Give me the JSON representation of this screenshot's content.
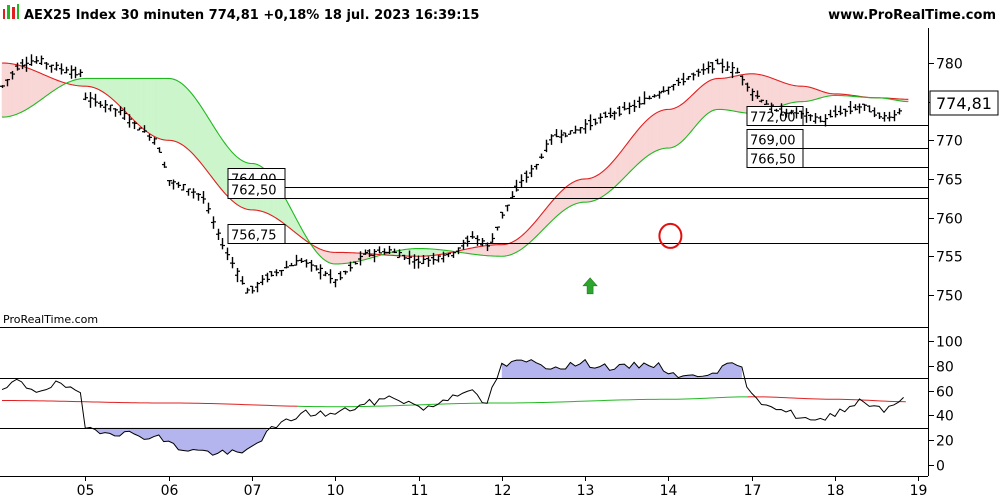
{
  "header": {
    "title": "AEX25 Index 30 minuten 774,81 +0,18% 18 jul. 2023 16:39:15",
    "site": "www.ProRealTime.com"
  },
  "watermark": "ProRealTime.com",
  "last_price_label": "774,81",
  "icons": {
    "logo": "candlestick-logo-icon",
    "signal": "green-up-arrow-icon",
    "marker": "red-circle-marker-icon"
  },
  "colors": {
    "candle": "#000000",
    "upper_band": "#e02020",
    "lower_band": "#22b822",
    "cloud_up": "#ccf5cc",
    "cloud_down": "#f9d7d7",
    "osc_line": "#000000",
    "osc_fill": "#b4b4ee",
    "signal_arrow": "#2ea52e",
    "marker": "#e01010",
    "axis": "#000000"
  },
  "chart_data": [
    {
      "type": "candlestick",
      "title": "AEX25 Index 30 minuten",
      "x_tick_labels": [
        "05",
        "06",
        "07",
        "10",
        "11",
        "12",
        "13",
        "14",
        "17",
        "18",
        "19"
      ],
      "y_ticks": [
        750,
        755,
        760,
        765,
        770,
        775,
        780
      ],
      "y_tick_labels": [
        "750",
        "755",
        "760",
        "765",
        "770",
        "775",
        "780"
      ],
      "ylim": [
        747.5,
        784
      ],
      "grid": false,
      "last_price": 774.81,
      "horizontal_levels": [
        {
          "value": 764.0,
          "label": "764,00"
        },
        {
          "value": 762.5,
          "label": "762,50"
        },
        {
          "value": 756.75,
          "label": "756,75"
        },
        {
          "value": 772.0,
          "label": "772,00"
        },
        {
          "value": 769.0,
          "label": "769,00"
        },
        {
          "value": 766.5,
          "label": "766,50"
        }
      ],
      "price_anchors": [
        {
          "day": 4.0,
          "v": 777.0
        },
        {
          "day": 4.2,
          "v": 779.8
        },
        {
          "day": 4.45,
          "v": 780.3
        },
        {
          "day": 4.7,
          "v": 779.2
        },
        {
          "day": 4.95,
          "v": 778.6
        },
        {
          "day": 5.0,
          "v": 775.5
        },
        {
          "day": 5.4,
          "v": 773.8
        },
        {
          "day": 5.85,
          "v": 769.8
        },
        {
          "day": 6.0,
          "v": 764.8
        },
        {
          "day": 6.4,
          "v": 762.8
        },
        {
          "day": 6.6,
          "v": 757.5
        },
        {
          "day": 6.95,
          "v": 750.3
        },
        {
          "day": 7.2,
          "v": 752.5
        },
        {
          "day": 7.6,
          "v": 754.5
        },
        {
          "day": 7.85,
          "v": 753.0
        },
        {
          "day": 8.0,
          "v": 751.8
        },
        {
          "day": 8.35,
          "v": 755.3
        },
        {
          "day": 8.65,
          "v": 755.7
        },
        {
          "day": 9.0,
          "v": 754.3
        },
        {
          "day": 9.4,
          "v": 755.3
        },
        {
          "day": 9.65,
          "v": 757.6
        },
        {
          "day": 9.85,
          "v": 756.2
        },
        {
          "day": 10.0,
          "v": 760.5
        },
        {
          "day": 10.25,
          "v": 765.0
        },
        {
          "day": 10.4,
          "v": 766.5
        },
        {
          "day": 10.6,
          "v": 770.5
        },
        {
          "day": 10.85,
          "v": 771.0
        },
        {
          "day": 11.2,
          "v": 773.0
        },
        {
          "day": 11.6,
          "v": 774.5
        },
        {
          "day": 11.95,
          "v": 776.5
        },
        {
          "day": 12.3,
          "v": 778.5
        },
        {
          "day": 12.6,
          "v": 780.0
        },
        {
          "day": 12.85,
          "v": 778.6
        },
        {
          "day": 13.0,
          "v": 776.2
        },
        {
          "day": 13.3,
          "v": 773.7
        },
        {
          "day": 13.6,
          "v": 773.5
        },
        {
          "day": 13.85,
          "v": 772.5
        },
        {
          "day": 14.0,
          "v": 773.5
        },
        {
          "day": 14.35,
          "v": 774.5
        },
        {
          "day": 14.55,
          "v": 773.0
        },
        {
          "day": 14.7,
          "v": 773.1
        },
        {
          "day": 14.88,
          "v": 775.0
        }
      ],
      "bands": {
        "upper": [
          {
            "day": 4.0,
            "v": 780.0
          },
          {
            "day": 5.0,
            "v": 777.0
          },
          {
            "day": 6.0,
            "v": 770.0
          },
          {
            "day": 7.0,
            "v": 761.0
          },
          {
            "day": 8.0,
            "v": 755.5
          },
          {
            "day": 9.0,
            "v": 755.0
          },
          {
            "day": 10.0,
            "v": 756.5
          },
          {
            "day": 11.0,
            "v": 765.0
          },
          {
            "day": 12.0,
            "v": 774.0
          },
          {
            "day": 12.6,
            "v": 778.0
          },
          {
            "day": 13.0,
            "v": 778.6
          },
          {
            "day": 13.6,
            "v": 777.0
          },
          {
            "day": 14.0,
            "v": 776.0
          },
          {
            "day": 14.5,
            "v": 775.5
          },
          {
            "day": 14.9,
            "v": 775.3
          }
        ],
        "lower": [
          {
            "day": 4.0,
            "v": 773.0
          },
          {
            "day": 5.0,
            "v": 778.0
          },
          {
            "day": 6.0,
            "v": 778.0
          },
          {
            "day": 7.0,
            "v": 767.0
          },
          {
            "day": 8.0,
            "v": 754.0
          },
          {
            "day": 9.0,
            "v": 756.0
          },
          {
            "day": 10.0,
            "v": 755.0
          },
          {
            "day": 11.0,
            "v": 762.0
          },
          {
            "day": 12.0,
            "v": 769.0
          },
          {
            "day": 12.6,
            "v": 774.0
          },
          {
            "day": 13.0,
            "v": 773.5
          },
          {
            "day": 13.6,
            "v": 775.0
          },
          {
            "day": 14.0,
            "v": 775.8
          },
          {
            "day": 14.5,
            "v": 775.5
          },
          {
            "day": 14.9,
            "v": 775.0
          }
        ]
      }
    },
    {
      "type": "line",
      "title": "",
      "y_ticks": [
        0,
        20,
        40,
        60,
        80,
        100
      ],
      "y_tick_labels": [
        "0",
        "20",
        "40",
        "60",
        "80",
        "100"
      ],
      "ylim": [
        0,
        100
      ],
      "levels": [
        30,
        70
      ],
      "grid": false,
      "oscillator": [
        {
          "day": 4.0,
          "v": 58
        },
        {
          "day": 4.15,
          "v": 68
        },
        {
          "day": 4.4,
          "v": 60
        },
        {
          "day": 4.7,
          "v": 66
        },
        {
          "day": 4.95,
          "v": 55
        },
        {
          "day": 5.0,
          "v": 30
        },
        {
          "day": 5.4,
          "v": 26
        },
        {
          "day": 5.9,
          "v": 22
        },
        {
          "day": 6.1,
          "v": 14
        },
        {
          "day": 6.5,
          "v": 10
        },
        {
          "day": 6.9,
          "v": 9
        },
        {
          "day": 7.2,
          "v": 27
        },
        {
          "day": 7.6,
          "v": 42
        },
        {
          "day": 8.0,
          "v": 41
        },
        {
          "day": 8.3,
          "v": 48
        },
        {
          "day": 8.7,
          "v": 55
        },
        {
          "day": 9.1,
          "v": 45
        },
        {
          "day": 9.4,
          "v": 56
        },
        {
          "day": 9.6,
          "v": 62
        },
        {
          "day": 9.8,
          "v": 47
        },
        {
          "day": 10.0,
          "v": 80
        },
        {
          "day": 10.3,
          "v": 84
        },
        {
          "day": 10.6,
          "v": 79
        },
        {
          "day": 11.0,
          "v": 82
        },
        {
          "day": 11.4,
          "v": 78
        },
        {
          "day": 11.8,
          "v": 82
        },
        {
          "day": 12.2,
          "v": 70
        },
        {
          "day": 12.6,
          "v": 77
        },
        {
          "day": 12.85,
          "v": 82
        },
        {
          "day": 13.0,
          "v": 55
        },
        {
          "day": 13.25,
          "v": 48
        },
        {
          "day": 13.6,
          "v": 38
        },
        {
          "day": 13.8,
          "v": 34
        },
        {
          "day": 14.0,
          "v": 42
        },
        {
          "day": 14.3,
          "v": 52
        },
        {
          "day": 14.6,
          "v": 45
        },
        {
          "day": 14.85,
          "v": 56
        }
      ],
      "signal_line": [
        {
          "day": 4.0,
          "v": 52
        },
        {
          "day": 6.0,
          "v": 50
        },
        {
          "day": 8.0,
          "v": 47
        },
        {
          "day": 10.0,
          "v": 50
        },
        {
          "day": 12.0,
          "v": 53
        },
        {
          "day": 13.0,
          "v": 55
        },
        {
          "day": 14.0,
          "v": 53
        },
        {
          "day": 14.9,
          "v": 51
        }
      ]
    }
  ],
  "annotations": {
    "signal_arrow_day": 11.0,
    "signal_arrow_value": 753.5,
    "marker_day": 12.0,
    "marker_value": 757.5
  }
}
